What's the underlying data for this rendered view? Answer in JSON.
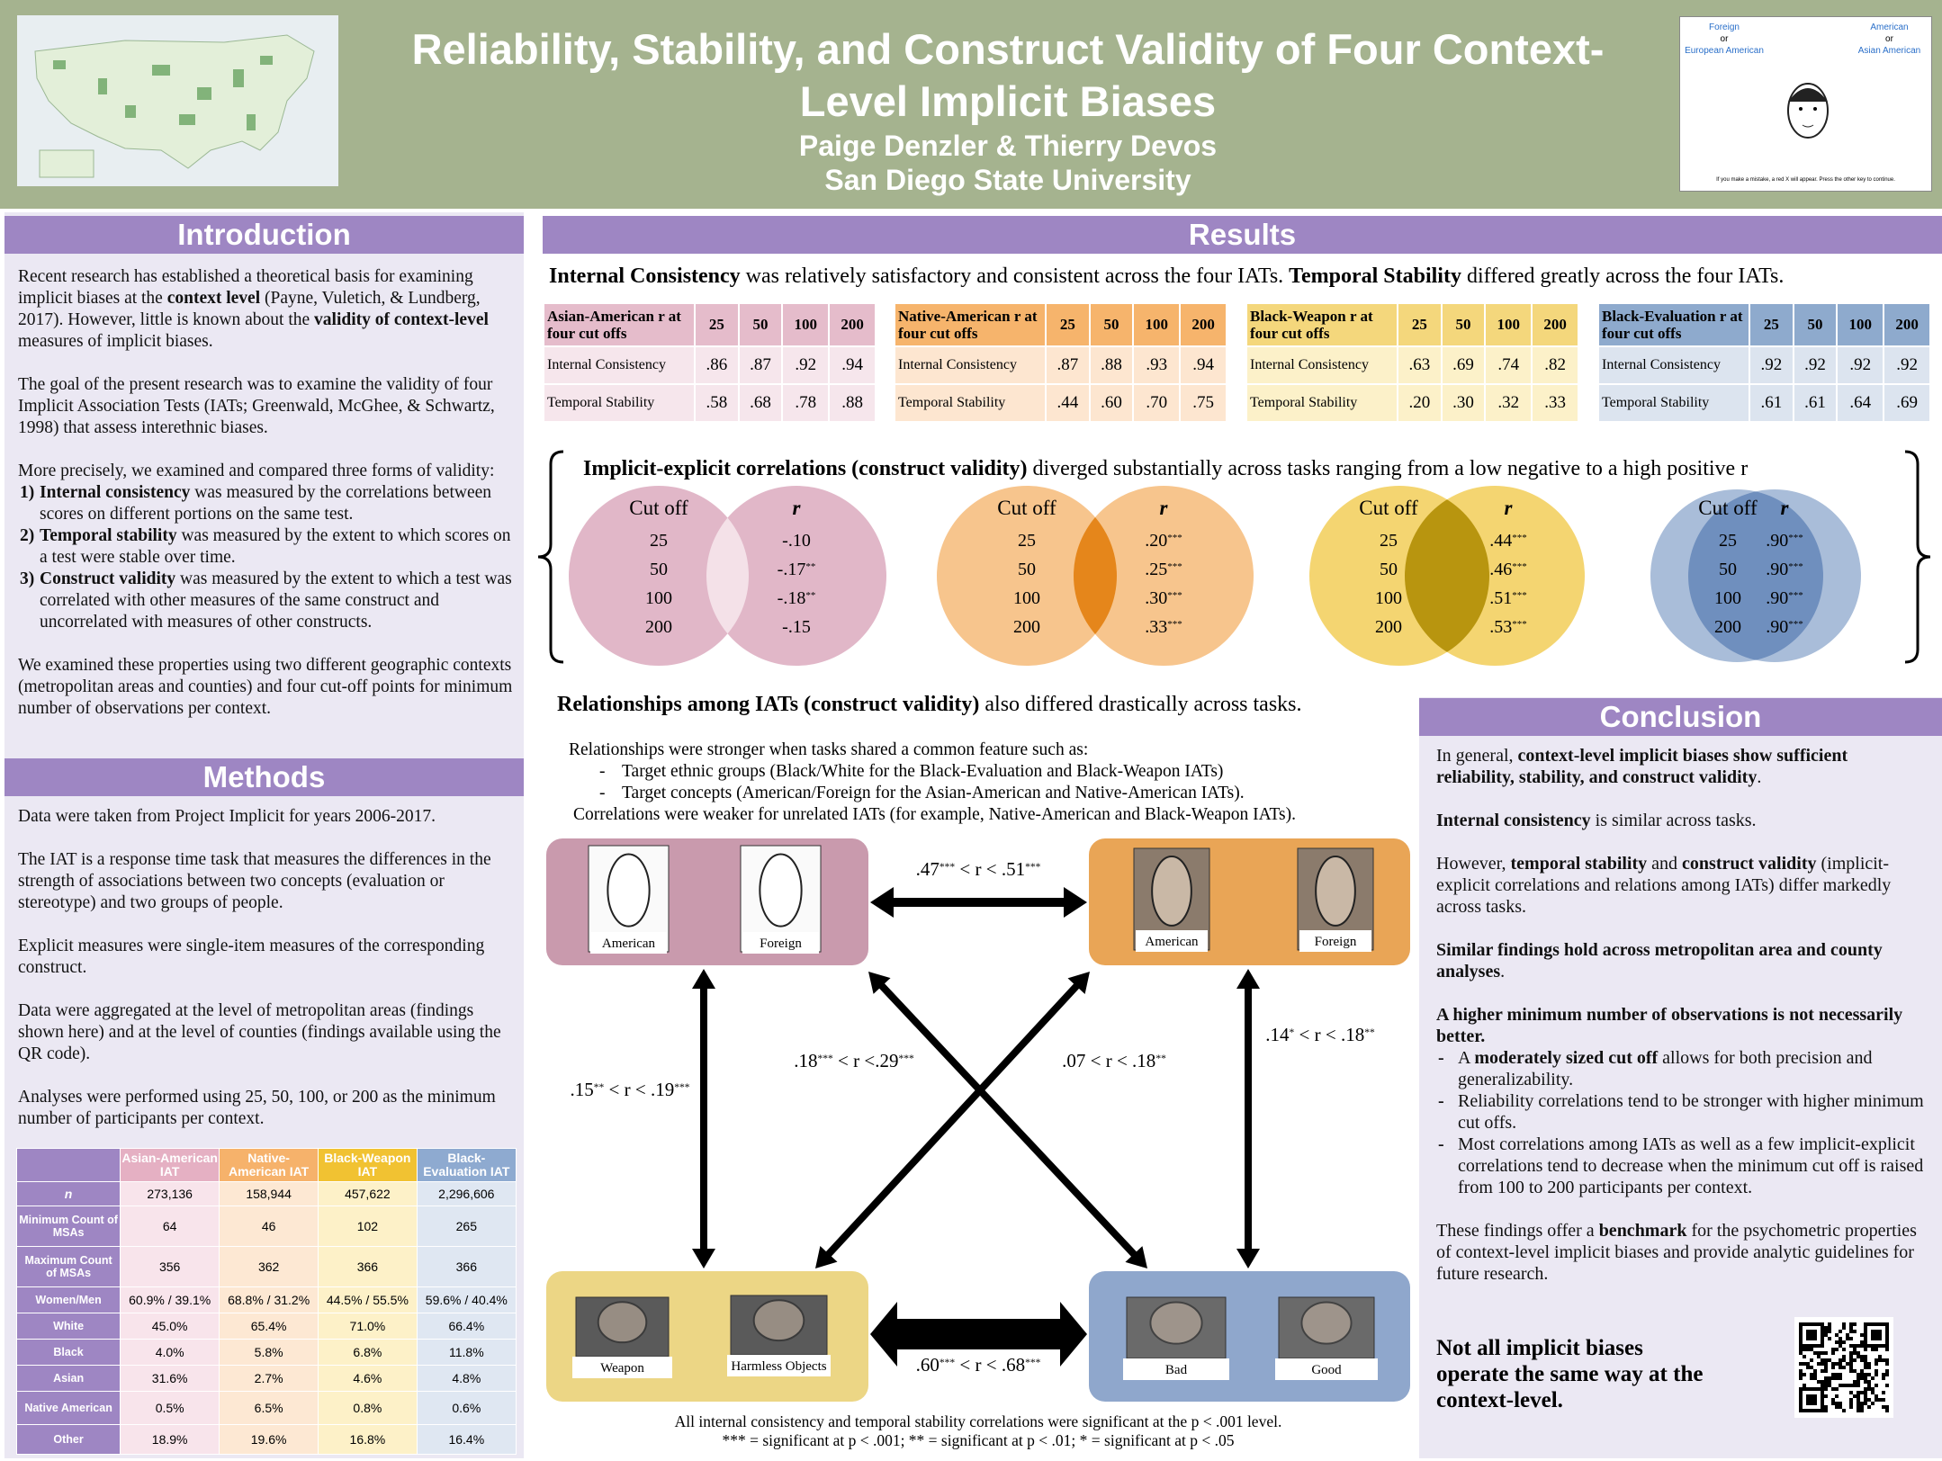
{
  "header": {
    "title": "Reliability, Stability, and Construct Validity of Four Context-Level Implicit Biases",
    "authors": "Paige Denzler & Thierry Devos",
    "affiliation": "San Diego State University",
    "iat_screen": {
      "left": [
        "Foreign",
        "or",
        "European American"
      ],
      "right": [
        "American",
        "or",
        "Asian American"
      ],
      "note": "If you make a mistake, a red X will appear. Press the other key to continue."
    }
  },
  "introduction": {
    "heading": "Introduction",
    "blocks": [
      {
        "runs": [
          "Recent research has established a theoretical basis for examining implicit biases at the ",
          {
            "b": "context level"
          },
          " (Payne, Vuletich, & Lundberg, 2017). However, little is known about the ",
          {
            "b": "validity of context-level"
          },
          " measures of implicit biases."
        ]
      },
      {
        "runs": [
          "The goal of the present research was to examine the validity of four Implicit Association Tests (IATs; Greenwald, McGhee, & Schwartz, 1998) that assess interethnic biases."
        ]
      },
      {
        "runs": [
          "More precisely, we examined and compared three forms of validity:"
        ]
      },
      {
        "marker": "1)",
        "runs": [
          {
            "b": "Internal consistency"
          },
          " was measured by the correlations between scores on different portions on the same test."
        ]
      },
      {
        "marker": "2)",
        "runs": [
          {
            "b": "Temporal stability"
          },
          " was measured by the extent to which scores on a test were stable over time."
        ]
      },
      {
        "marker": "3)",
        "runs": [
          {
            "b": "Construct validity"
          },
          " was measured by the extent to which a test was correlated with other measures of the same construct and uncorrelated with measures of other constructs."
        ]
      },
      {
        "runs": [
          "We examined these properties using two different geographic contexts (metropolitan areas and counties) and four cut-off points for minimum number of observations per context."
        ]
      }
    ]
  },
  "methods": {
    "heading": "Methods",
    "blocks": [
      {
        "runs": [
          "Data were taken from Project Implicit for years 2006-2017."
        ]
      },
      {
        "runs": [
          "The IAT is a response time task that measures the differences in the strength of associations between two concepts (evaluation or stereotype) and two groups of people."
        ]
      },
      {
        "runs": [
          "Explicit measures were single-item measures of the corresponding construct."
        ]
      },
      {
        "runs": [
          "Data were aggregated at the level of metropolitan areas (findings shown here) and at the level of counties (findings available using the QR code)."
        ]
      },
      {
        "runs": [
          "Analyses were performed using 25, 50, 100, or 200 as the minimum number of participants per context."
        ]
      }
    ],
    "table": {
      "columns": [
        "Asian-American IAT",
        "Native-American IAT",
        "Black-Weapon IAT",
        "Black-Evaluation IAT"
      ],
      "column_colors": [
        "#e5b0c3",
        "#f6b26b",
        "#f1c232",
        "#8eaad0"
      ],
      "cell_colors": [
        "#f8e4eb",
        "#fde8d3",
        "#fdf1c8",
        "#dfe7f2"
      ],
      "rows": [
        [
          "n",
          "273,136",
          "158,944",
          "457,622",
          "2,296,606"
        ],
        [
          "Minimum Count of MSAs",
          "64",
          "46",
          "102",
          "265"
        ],
        [
          "Maximum Count of MSAs",
          "356",
          "362",
          "366",
          "366"
        ],
        [
          "Women/Men",
          "60.9% / 39.1%",
          "68.8% / 31.2%",
          "44.5% / 55.5%",
          "59.6% / 40.4%"
        ],
        [
          "White",
          "45.0%",
          "65.4%",
          "71.0%",
          "66.4%"
        ],
        [
          "Black",
          "4.0%",
          "5.8%",
          "6.8%",
          "11.8%"
        ],
        [
          "Asian",
          "31.6%",
          "2.7%",
          "4.6%",
          "4.8%"
        ],
        [
          "Native American",
          "0.5%",
          "6.5%",
          "0.8%",
          "0.6%"
        ],
        [
          "Other",
          "18.9%",
          "19.6%",
          "16.8%",
          "16.4%"
        ]
      ]
    }
  },
  "results": {
    "heading": "Results",
    "summary": [
      {
        "b": "Internal Consistency"
      },
      " was relatively satisfactory and consistent across the four IATs.  ",
      {
        "b": "Temporal Stability"
      },
      " differed greatly across the four IATs."
    ],
    "tables": [
      {
        "title": "Asian-American r at four cut offs",
        "header_color": "#e5bccb",
        "row_color": "#f6e6ec",
        "cutoffs": [
          25,
          50,
          100,
          200
        ],
        "rows": [
          {
            "label": "Internal Consistency",
            "values": [
              ".86",
              ".87",
              ".92",
              ".94"
            ]
          },
          {
            "label": "Temporal Stability",
            "values": [
              ".58",
              ".68",
              ".78",
              ".88"
            ]
          }
        ]
      },
      {
        "title": "Native-American r at four cut offs",
        "header_color": "#f6b46c",
        "row_color": "#fde6d0",
        "cutoffs": [
          25,
          50,
          100,
          200
        ],
        "rows": [
          {
            "label": "Internal Consistency",
            "values": [
              ".87",
              ".88",
              ".93",
              ".94"
            ]
          },
          {
            "label": "Temporal Stability",
            "values": [
              ".44",
              ".60",
              ".70",
              ".75"
            ]
          }
        ]
      },
      {
        "title": "Black-Weapon r at four cut offs",
        "header_color": "#f4d77c",
        "row_color": "#fcf1c9",
        "cutoffs": [
          25,
          50,
          100,
          200
        ],
        "rows": [
          {
            "label": "Internal Consistency",
            "values": [
              ".63",
              ".69",
              ".74",
              ".82"
            ]
          },
          {
            "label": "Temporal Stability",
            "values": [
              ".20",
              ".30",
              ".32",
              ".33"
            ]
          }
        ]
      },
      {
        "title": "Black-Evaluation r at four cut offs",
        "header_color": "#8eaacd",
        "row_color": "#dce4ef",
        "cutoffs": [
          25,
          50,
          100,
          200
        ],
        "rows": [
          {
            "label": "Internal Consistency",
            "values": [
              ".92",
              ".92",
              ".92",
              ".92"
            ]
          },
          {
            "label": "Temporal Stability",
            "values": [
              ".61",
              ".61",
              ".64",
              ".69"
            ]
          }
        ]
      }
    ],
    "venn_heading": [
      {
        "b": "Implicit-explicit correlations (construct validity)"
      },
      " diverged substantially across tasks ranging from a low negative to a high positive r"
    ],
    "venns": [
      {
        "cut_label": "Cut off",
        "r_label": "r",
        "cutoffs": [
          25,
          50,
          100,
          200
        ],
        "r": [
          "-.10",
          "-.17**",
          "-.18**",
          "-.15"
        ],
        "color": "#e1b7c8",
        "overlap_color": "#f4e1e8"
      },
      {
        "cut_label": "Cut off",
        "r_label": "r",
        "cutoffs": [
          25,
          50,
          100,
          200
        ],
        "r": [
          ".20***",
          ".25***",
          ".30***",
          ".33***"
        ],
        "color": "#f7c58d",
        "overlap_color": "#e5861b"
      },
      {
        "cut_label": "Cut off",
        "r_label": "r",
        "cutoffs": [
          25,
          50,
          100,
          200
        ],
        "r": [
          ".44***",
          ".46***",
          ".51***",
          ".53***"
        ],
        "color": "#f4d571",
        "overlap_color": "#b8950f"
      },
      {
        "cut_label": "Cut off",
        "r_label": "r",
        "cutoffs": [
          25,
          50,
          100,
          200
        ],
        "r": [
          ".90***",
          ".90***",
          ".90***",
          ".90***"
        ],
        "color": "#a9bdd9",
        "overlap_color": "#6f8fbe"
      }
    ]
  },
  "relationships": {
    "heading": [
      {
        "b": "Relationships among IATs (construct validity)"
      },
      " also differed drastically across tasks."
    ],
    "notes": [
      {
        "text": "Relationships were stronger when tasks shared a common feature such as:"
      },
      {
        "marker": "-",
        "text": "Target ethnic groups (Black/White for the Black-Evaluation and Black-Weapon IATs)"
      },
      {
        "marker": "-",
        "text": "Target concepts (American/Foreign for the Asian-American and Native-American IATs)."
      },
      {
        "text": "Correlations were weaker for unrelated IATs (for example, Native-American and Black-Weapon IATs)."
      }
    ],
    "boxes": [
      {
        "color": "#c99aad",
        "labels": [
          "American",
          "Foreign"
        ]
      },
      {
        "color": "#e9a556",
        "labels": [
          "American",
          "Foreign"
        ]
      },
      {
        "color": "#ecd685",
        "labels": [
          "Weapon",
          "Harmless Objects"
        ]
      },
      {
        "color": "#8fa7cc",
        "labels": [
          "Bad",
          "Good"
        ]
      }
    ],
    "links": {
      "top": ".47*** < r < .51***",
      "left": ".15** < r < .19***",
      "right": ".14* < r < .18**",
      "cross_a": ".18*** < r <.29***",
      "cross_b": ".07 < r < .18**",
      "bottom": ".60*** < r < .68***"
    },
    "footnotes": [
      "All internal consistency and temporal stability correlations were significant at the p < .001 level.",
      "*** = significant  at p < .001; ** = significant at p < .01; * = significant at p < .05"
    ]
  },
  "conclusion": {
    "heading": "Conclusion",
    "blocks": [
      {
        "runs": [
          "In general, ",
          {
            "b": "context-level implicit biases show sufficient reliability, stability, and construct validity"
          },
          "."
        ]
      },
      {
        "runs": [
          {
            "b": "Internal consistency"
          },
          " is similar across tasks."
        ]
      },
      {
        "runs": [
          "However, ",
          {
            "b": "temporal stability"
          },
          " and ",
          {
            "b": "construct validity"
          },
          " (implicit-explicit correlations and relations among IATs) differ markedly across tasks."
        ]
      },
      {
        "runs": [
          {
            "b": "Similar findings hold across metropolitan area and county analyses"
          },
          "."
        ]
      },
      {
        "runs": [
          {
            "b": "A higher minimum number of observations is not necessarily better."
          }
        ]
      },
      {
        "marker": "-",
        "runs": [
          "A ",
          {
            "b": "moderately sized cut off"
          },
          " allows for both precision and generalizability."
        ]
      },
      {
        "marker": "-",
        "runs": [
          "Reliability correlations tend to be stronger with higher minimum cut offs."
        ]
      },
      {
        "marker": "-",
        "runs": [
          "Most correlations among IATs as well as a few implicit-explicit correlations tend to decrease when the minimum cut off is raised from 100 to 200 participants per context."
        ]
      },
      {
        "runs": [
          "These findings offer a ",
          {
            "b": "benchmark"
          },
          " for the psychometric properties of context-level implicit biases and provide analytic guidelines for future research."
        ]
      }
    ],
    "final": "Not all implicit biases operate the same way at the context-level."
  }
}
